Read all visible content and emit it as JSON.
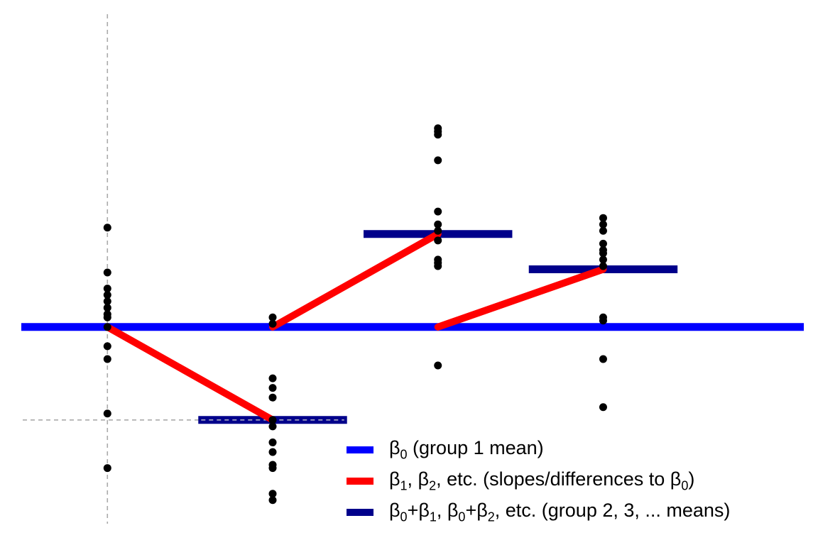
{
  "chart_data": {
    "type": "scatter",
    "xlim": [
      0.35,
      5.3
    ],
    "ylim": [
      -3.4,
      5.1
    ],
    "groups": [
      {
        "x": 1,
        "mean": 0,
        "points": [
          1.55,
          0.85,
          0.6,
          0.5,
          0.4,
          0.3,
          0.2,
          0.15,
          0,
          -0.3,
          -0.5,
          -1.35,
          -2.2
        ]
      },
      {
        "x": 2,
        "mean": -1.45,
        "points": [
          0.15,
          0.05,
          -0.8,
          -0.95,
          -1.1,
          -1.45,
          -1.55,
          -1.8,
          -1.95,
          -2.15,
          -2.2,
          -2.6,
          -2.7
        ]
      },
      {
        "x": 3,
        "mean": 1.45,
        "points": [
          3.1,
          3.05,
          3.0,
          2.6,
          1.8,
          1.6,
          1.5,
          1.35,
          1.05,
          1.0,
          0.95,
          -0.6
        ]
      },
      {
        "x": 4,
        "mean": 0.9,
        "points": [
          1.7,
          1.6,
          1.5,
          1.3,
          1.2,
          1.15,
          1.05,
          0.95,
          0.15,
          0.1,
          -0.5,
          -1.25
        ]
      }
    ],
    "baseline": 0,
    "mean_bar_half_width": 0.45,
    "red_segments": [
      {
        "x0": 1,
        "y0": 0,
        "x1": 2,
        "y1": -1.45
      },
      {
        "x0": 2,
        "y0": 0,
        "x1": 3,
        "y1": 1.45
      },
      {
        "x0": 3,
        "y0": 0,
        "x1": 4,
        "y1": 0.9
      }
    ],
    "reference_lines": {
      "vertical_x": 1,
      "horizontal_y": -1.45
    },
    "colors": {
      "baseline": "#0000ff",
      "difference": "#ff0000",
      "group_mean": "#00008b",
      "points": "#000000",
      "reference": "#aaaaaa"
    },
    "legend_position": "bottom-right",
    "legend": [
      {
        "key": "beta0",
        "color": "#0000ff",
        "parts": [
          [
            "β",
            "0"
          ],
          [
            " (group 1 mean)",
            ""
          ]
        ]
      },
      {
        "key": "beta_slopes",
        "color": "#ff0000",
        "parts": [
          [
            "β",
            "1"
          ],
          [
            ", β",
            "2"
          ],
          [
            ",  etc. (slopes/differences to β",
            "0"
          ],
          [
            ")",
            ""
          ]
        ]
      },
      {
        "key": "group_means",
        "color": "#00008b",
        "parts": [
          [
            "β",
            "0"
          ],
          [
            "+β",
            "1"
          ],
          [
            ", β",
            "0"
          ],
          [
            "+β",
            "2"
          ],
          [
            ", etc. (group 2, 3, ... means)",
            ""
          ]
        ]
      }
    ]
  }
}
